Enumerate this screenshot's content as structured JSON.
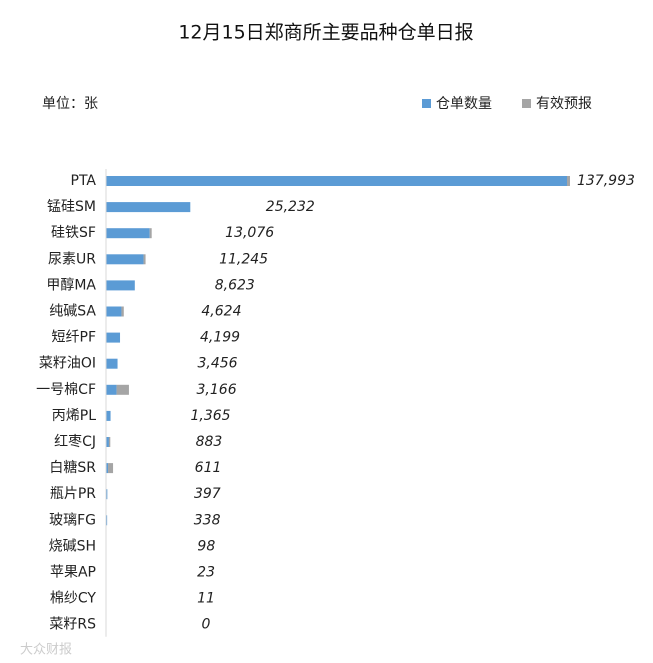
{
  "chart_data": {
    "type": "bar",
    "orientation": "horizontal",
    "stacked": true,
    "title": "12月15日郑商所主要品种仓单日报",
    "unit_label": "单位：张",
    "legend": "top-right",
    "categories": [
      "PTA",
      "锰硅SM",
      "硅铁SF",
      "尿素UR",
      "甲醇MA",
      "纯碱SA",
      "短纤PF",
      "菜籽油OI",
      "一号棉CF",
      "丙烯PL",
      "红枣CJ",
      "白糖SR",
      "瓶片PR",
      "玻璃FG",
      "烧碱SH",
      "苹果AP",
      "棉纱CY",
      "菜籽RS"
    ],
    "series": [
      {
        "name": "仓单数量",
        "color": "#5b9bd5",
        "values": [
          137993,
          25232,
          13076,
          11245,
          8623,
          4624,
          4199,
          3456,
          3166,
          1365,
          883,
          611,
          397,
          338,
          98,
          23,
          11,
          0
        ],
        "value_labels": [
          "137,993",
          "25,232",
          "13,076",
          "11,245",
          "8,623",
          "4,624",
          "4,199",
          "3,456",
          "3,166",
          "1,365",
          "883",
          "611",
          "397",
          "338",
          "98",
          "23",
          "11",
          "0"
        ]
      },
      {
        "name": "有效预报",
        "color": "#a5a5a5",
        "values": [
          900,
          0,
          600,
          600,
          0,
          700,
          0,
          0,
          3700,
          0,
          400,
          1500,
          0,
          0,
          0,
          0,
          0,
          0
        ]
      }
    ]
  },
  "watermark": "大众财报"
}
